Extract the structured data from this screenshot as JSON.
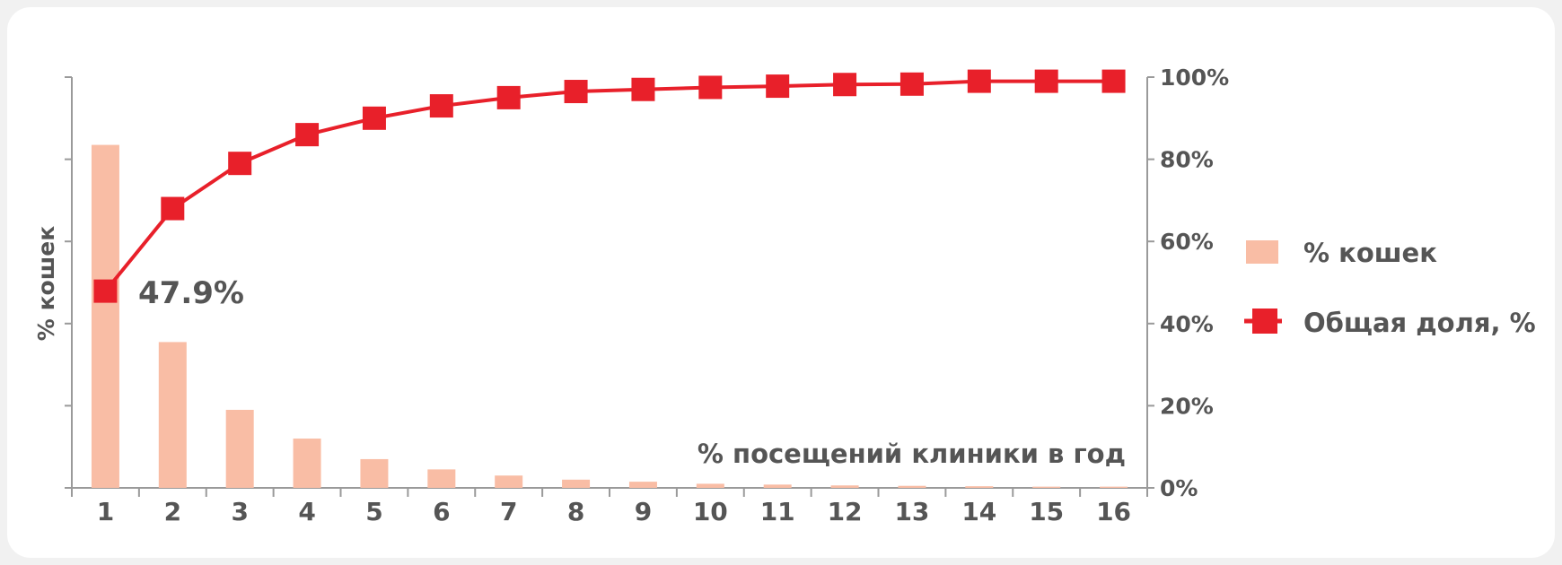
{
  "chart_data": {
    "type": "bar+line",
    "categories": [
      "1",
      "2",
      "3",
      "4",
      "5",
      "6",
      "7",
      "8",
      "9",
      "10",
      "11",
      "12",
      "13",
      "14",
      "15",
      "16"
    ],
    "series": [
      {
        "name": "% кошек",
        "type": "bar",
        "axis": "left",
        "values": [
          83.5,
          35.5,
          19.0,
          12.0,
          7.0,
          4.5,
          3.0,
          2.0,
          1.5,
          1.0,
          0.8,
          0.6,
          0.5,
          0.4,
          0.3,
          0.3
        ],
        "color": "#f9bda5"
      },
      {
        "name": "Общая доля, %",
        "type": "line",
        "axis": "right",
        "values": [
          47.9,
          68,
          79,
          86,
          90,
          93,
          95,
          96.5,
          97,
          97.5,
          97.8,
          98.2,
          98.3,
          99,
          99,
          99
        ],
        "color": "#e8202a"
      }
    ],
    "annotation": "47.9%",
    "xlabel": "% посещений клиники в год",
    "ylabel": "% кошек",
    "ylim_left": [
      0,
      100
    ],
    "ylim_right": [
      0,
      100
    ],
    "right_tick_labels": [
      "0%",
      "20%",
      "40%",
      "60%",
      "80%",
      "100%"
    ],
    "right_tick_values": [
      0,
      20,
      40,
      60,
      80,
      100
    ],
    "left_tick_values": [
      0,
      20,
      40,
      60,
      80,
      100
    ],
    "legend_position": "right",
    "grid": false
  }
}
